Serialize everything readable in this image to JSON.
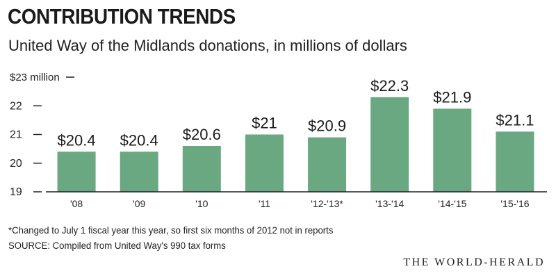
{
  "header": {
    "title": "CONTRIBUTION TRENDS",
    "subtitle": "United Way of the Midlands donations, in millions of dollars"
  },
  "chart_data": {
    "type": "bar",
    "categories": [
      "'08",
      "'09",
      "'10",
      "'11",
      "'12-'13*",
      "'13-'14",
      "'14-'15",
      "'15-'16"
    ],
    "values": [
      20.4,
      20.4,
      20.6,
      21,
      20.9,
      22.3,
      21.9,
      21.1
    ],
    "value_labels": [
      "$20.4",
      "$20.4",
      "$20.6",
      "$21",
      "$20.9",
      "$22.3",
      "$21.9",
      "$21.1"
    ],
    "yticks": [
      19,
      20,
      21,
      22,
      23
    ],
    "ytick_labels": [
      "19",
      "20",
      "21",
      "22",
      "$23 million"
    ],
    "ylim": [
      19,
      23
    ],
    "grid": false,
    "bar_color": "#6aa882",
    "axis_color": "#222222"
  },
  "footer": {
    "footnote": "*Changed to July 1 fiscal year this year, so first six months of 2012 not in reports",
    "source": "SOURCE: Compiled from United Way's 990 tax forms",
    "publisher": "THE WORLD-HERALD"
  }
}
